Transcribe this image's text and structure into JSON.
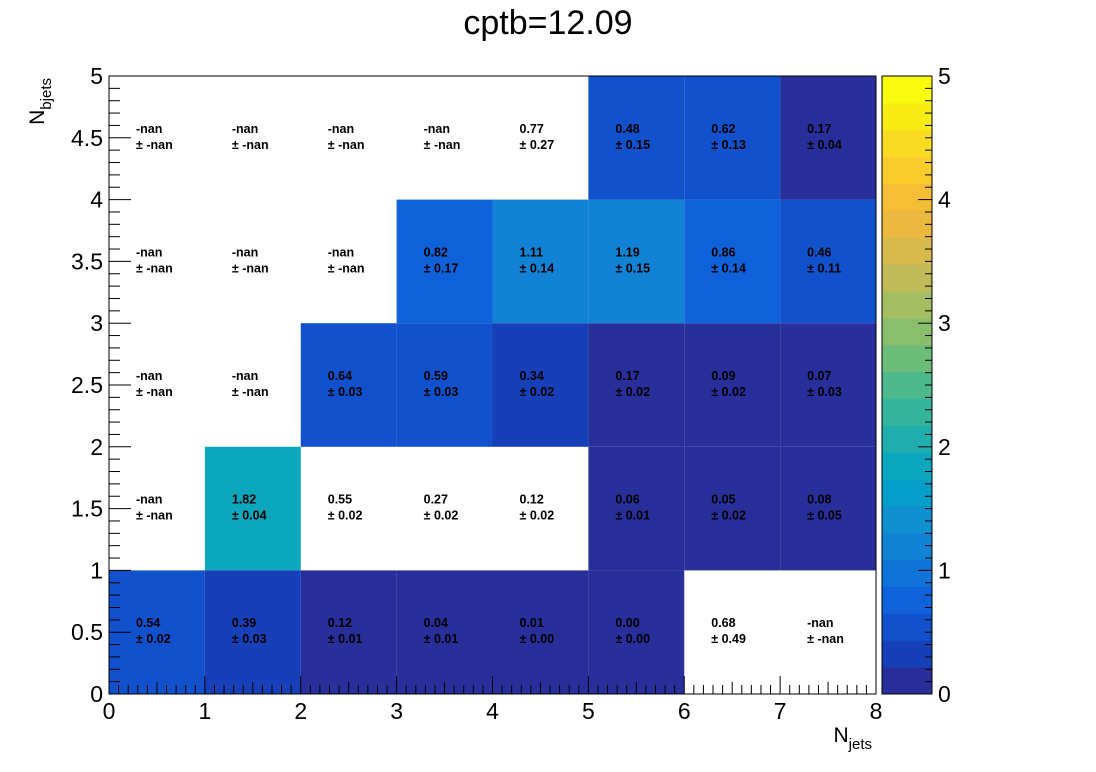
{
  "chart_data": {
    "type": "heatmap",
    "title": "cptb=12.09",
    "xlabel": {
      "main": "N",
      "sub": "jets"
    },
    "ylabel": {
      "main": "N",
      "sub": "bjets"
    },
    "xlim": [
      0,
      8
    ],
    "ylim": [
      0,
      5
    ],
    "x_bin_edges": [
      0,
      1,
      2,
      3,
      4,
      5,
      6,
      7,
      8
    ],
    "y_bin_edges": [
      0,
      1,
      2,
      3,
      4,
      5
    ],
    "x_tick_labels": [
      "0",
      "1",
      "2",
      "3",
      "4",
      "5",
      "6",
      "7",
      "8"
    ],
    "y_tick_labels": [
      "0",
      "0.5",
      "1",
      "1.5",
      "2",
      "2.5",
      "3",
      "3.5",
      "4",
      "4.5",
      "5"
    ],
    "colorbar": {
      "range": [
        0,
        5
      ],
      "tick_labels": [
        "0",
        "1",
        "2",
        "3",
        "4",
        "5"
      ],
      "colors": [
        "#282f9b",
        "#173fb8",
        "#1251cc",
        "#0f62d9",
        "#1172d7",
        "#1283d4",
        "#0e91ce",
        "#079dc9",
        "#0ca6bd",
        "#20adad",
        "#33b49b",
        "#4cb88b",
        "#6cbc7a",
        "#8abe6c",
        "#a5be61",
        "#c0bb58",
        "#d8b94c",
        "#ebb940",
        "#f6be37",
        "#f9cc2c",
        "#f8dc21",
        "#f7ec14",
        "#f9fb0e"
      ]
    },
    "cells": [
      {
        "ix": 0,
        "iy": 0,
        "value": 0.54,
        "error": 0.02,
        "value_text": "0.54",
        "error_text": "± 0.02"
      },
      {
        "ix": 1,
        "iy": 0,
        "value": 0.39,
        "error": 0.03,
        "value_text": "0.39",
        "error_text": "± 0.03"
      },
      {
        "ix": 2,
        "iy": 0,
        "value": 0.12,
        "error": 0.01,
        "value_text": "0.12",
        "error_text": "± 0.01"
      },
      {
        "ix": 3,
        "iy": 0,
        "value": 0.04,
        "error": 0.01,
        "value_text": "0.04",
        "error_text": "± 0.01"
      },
      {
        "ix": 4,
        "iy": 0,
        "value": 0.01,
        "error": 0.0,
        "value_text": "0.01",
        "error_text": "± 0.00"
      },
      {
        "ix": 5,
        "iy": 0,
        "value": 0.0,
        "error": 0.0,
        "value_text": "0.00",
        "error_text": "± 0.00"
      },
      {
        "ix": 6,
        "iy": 0,
        "value": 0.68,
        "error": 0.49,
        "value_text": "0.68",
        "error_text": "± 0.49",
        "fill": "none"
      },
      {
        "ix": 7,
        "iy": 0,
        "value": null,
        "error": null,
        "value_text": "-nan",
        "error_text": "± -nan"
      },
      {
        "ix": 0,
        "iy": 1,
        "value": null,
        "error": null,
        "value_text": "-nan",
        "error_text": "± -nan"
      },
      {
        "ix": 1,
        "iy": 1,
        "value": 1.82,
        "error": 0.04,
        "value_text": "1.82",
        "error_text": "± 0.04"
      },
      {
        "ix": 2,
        "iy": 1,
        "value": 0.55,
        "error": 0.02,
        "value_text": "0.55",
        "error_text": "± 0.02",
        "fill": "none"
      },
      {
        "ix": 3,
        "iy": 1,
        "value": 0.27,
        "error": 0.02,
        "value_text": "0.27",
        "error_text": "± 0.02",
        "fill": "none"
      },
      {
        "ix": 4,
        "iy": 1,
        "value": 0.12,
        "error": 0.02,
        "value_text": "0.12",
        "error_text": "± 0.02",
        "fill": "none"
      },
      {
        "ix": 5,
        "iy": 1,
        "value": 0.06,
        "error": 0.01,
        "value_text": "0.06",
        "error_text": "± 0.01"
      },
      {
        "ix": 6,
        "iy": 1,
        "value": 0.05,
        "error": 0.02,
        "value_text": "0.05",
        "error_text": "± 0.02"
      },
      {
        "ix": 7,
        "iy": 1,
        "value": 0.08,
        "error": 0.05,
        "value_text": "0.08",
        "error_text": "± 0.05"
      },
      {
        "ix": 0,
        "iy": 2,
        "value": null,
        "error": null,
        "value_text": "-nan",
        "error_text": "± -nan"
      },
      {
        "ix": 1,
        "iy": 2,
        "value": null,
        "error": null,
        "value_text": "-nan",
        "error_text": "± -nan"
      },
      {
        "ix": 2,
        "iy": 2,
        "value": 0.64,
        "error": 0.03,
        "value_text": "0.64",
        "error_text": "± 0.03"
      },
      {
        "ix": 3,
        "iy": 2,
        "value": 0.59,
        "error": 0.03,
        "value_text": "0.59",
        "error_text": "± 0.03"
      },
      {
        "ix": 4,
        "iy": 2,
        "value": 0.34,
        "error": 0.02,
        "value_text": "0.34",
        "error_text": "± 0.02"
      },
      {
        "ix": 5,
        "iy": 2,
        "value": 0.17,
        "error": 0.02,
        "value_text": "0.17",
        "error_text": "± 0.02"
      },
      {
        "ix": 6,
        "iy": 2,
        "value": 0.09,
        "error": 0.02,
        "value_text": "0.09",
        "error_text": "± 0.02"
      },
      {
        "ix": 7,
        "iy": 2,
        "value": 0.07,
        "error": 0.03,
        "value_text": "0.07",
        "error_text": "± 0.03"
      },
      {
        "ix": 0,
        "iy": 3,
        "value": null,
        "error": null,
        "value_text": "-nan",
        "error_text": "± -nan"
      },
      {
        "ix": 1,
        "iy": 3,
        "value": null,
        "error": null,
        "value_text": "-nan",
        "error_text": "± -nan"
      },
      {
        "ix": 2,
        "iy": 3,
        "value": null,
        "error": null,
        "value_text": "-nan",
        "error_text": "± -nan"
      },
      {
        "ix": 3,
        "iy": 3,
        "value": 0.82,
        "error": 0.17,
        "value_text": "0.82",
        "error_text": "± 0.17"
      },
      {
        "ix": 4,
        "iy": 3,
        "value": 1.11,
        "error": 0.14,
        "value_text": "1.11",
        "error_text": "± 0.14"
      },
      {
        "ix": 5,
        "iy": 3,
        "value": 1.19,
        "error": 0.15,
        "value_text": "1.19",
        "error_text": "± 0.15"
      },
      {
        "ix": 6,
        "iy": 3,
        "value": 0.86,
        "error": 0.14,
        "value_text": "0.86",
        "error_text": "± 0.14"
      },
      {
        "ix": 7,
        "iy": 3,
        "value": 0.46,
        "error": 0.11,
        "value_text": "0.46",
        "error_text": "± 0.11"
      },
      {
        "ix": 0,
        "iy": 4,
        "value": null,
        "error": null,
        "value_text": "-nan",
        "error_text": "± -nan"
      },
      {
        "ix": 1,
        "iy": 4,
        "value": null,
        "error": null,
        "value_text": "-nan",
        "error_text": "± -nan"
      },
      {
        "ix": 2,
        "iy": 4,
        "value": null,
        "error": null,
        "value_text": "-nan",
        "error_text": "± -nan"
      },
      {
        "ix": 3,
        "iy": 4,
        "value": null,
        "error": null,
        "value_text": "-nan",
        "error_text": "± -nan"
      },
      {
        "ix": 4,
        "iy": 4,
        "value": 0.77,
        "error": 0.27,
        "value_text": "0.77",
        "error_text": "± 0.27",
        "fill": "none"
      },
      {
        "ix": 5,
        "iy": 4,
        "value": 0.48,
        "error": 0.15,
        "value_text": "0.48",
        "error_text": "± 0.15"
      },
      {
        "ix": 6,
        "iy": 4,
        "value": 0.62,
        "error": 0.13,
        "value_text": "0.62",
        "error_text": "± 0.13"
      },
      {
        "ix": 7,
        "iy": 4,
        "value": 0.17,
        "error": 0.04,
        "value_text": "0.17",
        "error_text": "± 0.04"
      }
    ]
  }
}
